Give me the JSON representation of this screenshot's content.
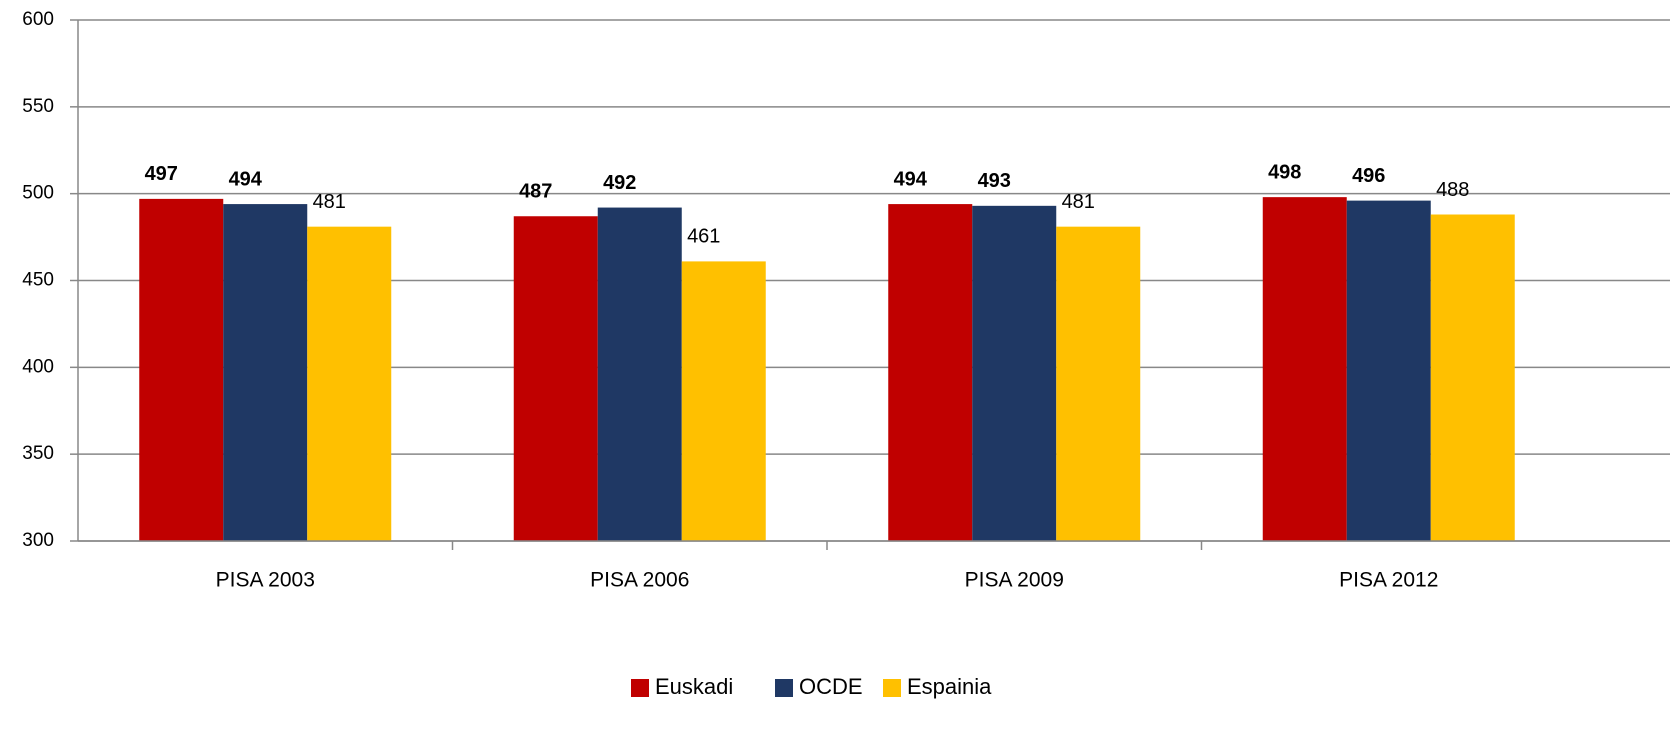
{
  "chart_data": {
    "type": "bar",
    "categories": [
      "PISA 2003",
      "PISA 2006",
      "PISA 2009",
      "PISA 2012"
    ],
    "series": [
      {
        "name": "Euskadi",
        "color": "#c00000",
        "values": [
          497,
          487,
          494,
          498
        ]
      },
      {
        "name": "OCDE",
        "color": "#1f3864",
        "values": [
          494,
          492,
          493,
          496
        ]
      },
      {
        "name": "Espainia",
        "color": "#ffc000",
        "values": [
          481,
          461,
          481,
          488
        ]
      }
    ],
    "ylim": [
      300,
      600
    ],
    "yticks": [
      300,
      350,
      400,
      450,
      500,
      550,
      600
    ],
    "grid": true,
    "legend": "bottom"
  }
}
